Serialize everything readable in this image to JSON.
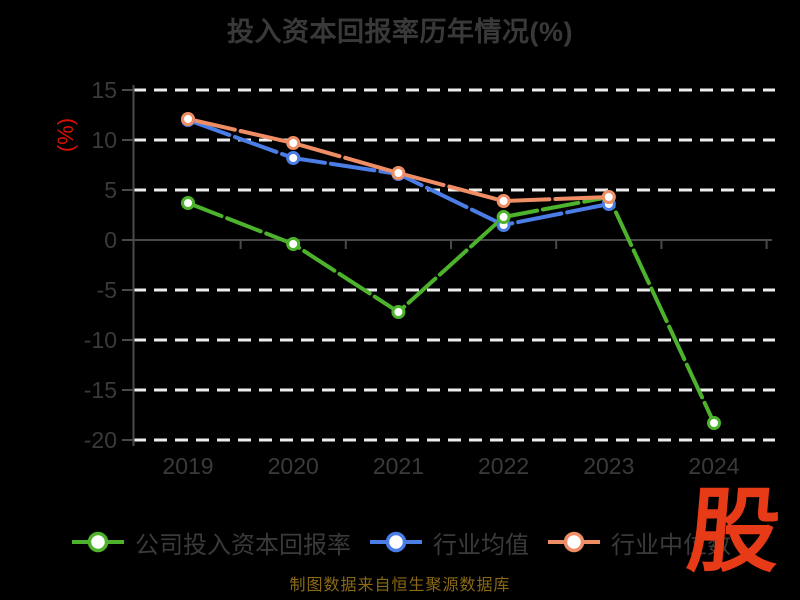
{
  "title": "投入资本回报率历年情况(%)",
  "footnote": "制图数据来自恒生聚源数据库",
  "logo_text": "股",
  "colors": {
    "background": "#000000",
    "text_muted": "#3a3a3a",
    "grid": "#ededed",
    "axis": "#4a4a4a",
    "ylabel_red": "#dd1100",
    "footnote_gold": "#8a6914",
    "logo_red": "#e73a17",
    "marker_fill": "#ffffff"
  },
  "chart_data": {
    "type": "line",
    "title": "投入资本回报率历年情况(%)",
    "xlabel": "",
    "ylabel": "(%)",
    "categories": [
      "2019",
      "2020",
      "2021",
      "2022",
      "2023",
      "2024"
    ],
    "series": [
      {
        "name": "公司投入资本回报率",
        "color": "#4db32d",
        "values": [
          3.7,
          -0.4,
          -7.2,
          2.3,
          4.3,
          -18.3
        ]
      },
      {
        "name": "行业均值",
        "color": "#4b7de6",
        "values": [
          12.0,
          8.2,
          6.6,
          1.5,
          3.6,
          null
        ]
      },
      {
        "name": "行业中位数",
        "color": "#ef8d65",
        "values": [
          12.1,
          9.7,
          6.7,
          3.9,
          4.3,
          null
        ]
      }
    ],
    "ylim": [
      -20,
      15
    ],
    "ytick_step": 5,
    "yticks": [
      15,
      10,
      5,
      0,
      -5,
      -10,
      -15,
      -20
    ],
    "grid": "horizontal-dashed",
    "legend_position": "bottom"
  }
}
